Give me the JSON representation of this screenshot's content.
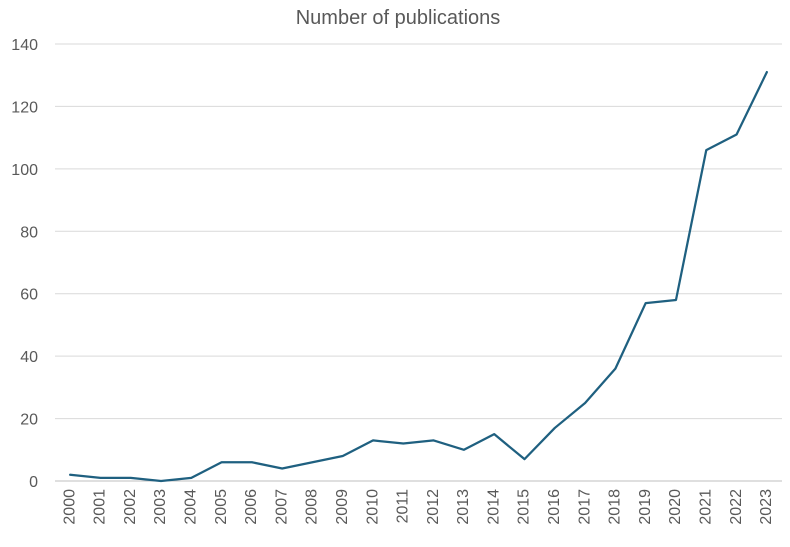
{
  "chart_data": {
    "type": "line",
    "title": "Number of publications",
    "xlabel": "",
    "ylabel": "",
    "categories": [
      "2000",
      "2001",
      "2002",
      "2003",
      "2004",
      "2005",
      "2006",
      "2007",
      "2008",
      "2009",
      "2010",
      "2011",
      "2012",
      "2013",
      "2014",
      "2015",
      "2016",
      "2017",
      "2018",
      "2019",
      "2020",
      "2021",
      "2022",
      "2023"
    ],
    "series": [
      {
        "values": [
          2,
          1,
          1,
          0,
          1,
          6,
          6,
          4,
          6,
          8,
          13,
          12,
          13,
          10,
          15,
          7,
          17,
          25,
          36,
          57,
          58,
          106,
          111,
          131
        ],
        "color": "#1f6080"
      }
    ],
    "ylim": [
      0,
      140
    ],
    "yticks": [
      0,
      20,
      40,
      60,
      80,
      100,
      120,
      140
    ],
    "grid": true,
    "legend": "none"
  }
}
